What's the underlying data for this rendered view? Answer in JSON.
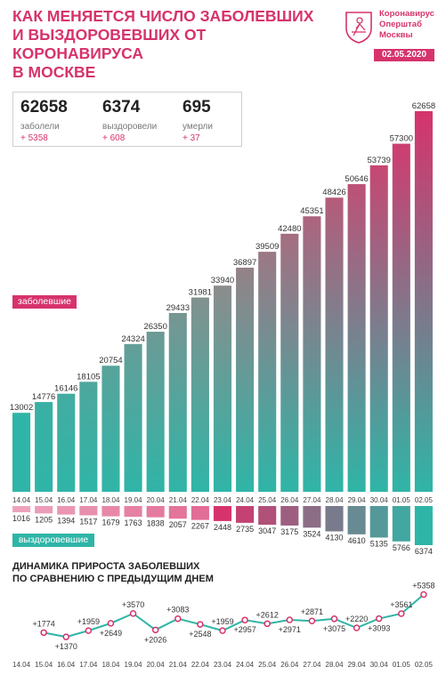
{
  "header": {
    "title_lines": [
      "Как меняется число заболевших",
      "и выздоровевших от коронавируса",
      "в Москве"
    ],
    "brand_lines": [
      "Коронавирус",
      "Оперштаб",
      "Москвы"
    ],
    "date": "02.05.2020",
    "logo_icon": "moscow-coat-of-arms-icon"
  },
  "stats": {
    "sick": {
      "value": "62658",
      "label": "заболели",
      "increase": "+ 5358"
    },
    "recovered": {
      "value": "6374",
      "label": "выздоровели",
      "increase": "+ 608"
    },
    "died": {
      "value": "695",
      "label": "умерли",
      "increase": "+ 37"
    }
  },
  "legend": {
    "sick": "заболевшие",
    "recovered": "выздоровевшие"
  },
  "dynamics_title_lines": [
    "Динамика прироста заболевших",
    "по сравнению с предыдущим днем"
  ],
  "colors": {
    "accent": "#d6336c",
    "teal": "#2fb5a7",
    "gray": "#8c8c8c"
  },
  "chart_data": [
    {
      "type": "bar",
      "categories": [
        "14.04",
        "15.04",
        "16.04",
        "17.04",
        "18.04",
        "19.04",
        "20.04",
        "21.04",
        "22.04",
        "23.04",
        "24.04",
        "25.04",
        "26.04",
        "27.04",
        "28.04",
        "29.04",
        "30.04",
        "01.05",
        "02.05"
      ],
      "series": [
        {
          "name": "заболевшие",
          "values": [
            13002,
            14776,
            16146,
            18105,
            20754,
            24324,
            26350,
            29433,
            31981,
            33940,
            36897,
            39509,
            42480,
            45351,
            48426,
            50646,
            53739,
            57300,
            62658
          ]
        },
        {
          "name": "выздоровевшие",
          "values": [
            1016,
            1205,
            1394,
            1517,
            1679,
            1763,
            1838,
            2057,
            2267,
            2448,
            2735,
            3047,
            3175,
            3524,
            4130,
            4610,
            5135,
            5766,
            6374
          ]
        }
      ]
    },
    {
      "type": "line",
      "title": "Динамика прироста заболевших по сравнению с предыдущим днем",
      "x": [
        "14.04",
        "15.04",
        "16.04",
        "17.04",
        "18.04",
        "19.04",
        "20.04",
        "21.04",
        "22.04",
        "23.04",
        "24.04",
        "25.04",
        "26.04",
        "27.04",
        "28.04",
        "29.04",
        "30.04",
        "01.05",
        "02.05"
      ],
      "values": [
        null,
        1774,
        1370,
        1959,
        2649,
        3570,
        2026,
        3083,
        2548,
        1959,
        2957,
        2612,
        2971,
        2871,
        3075,
        2220,
        3093,
        3561,
        5358
      ],
      "labels": [
        "",
        "+1774",
        "+1370",
        "+1959",
        "+2649",
        "+3570",
        "+2026",
        "+3083",
        "+2548",
        "+1959",
        "+2957",
        "+2612",
        "+2971",
        "+2871",
        "+3075",
        "+2220",
        "+3093",
        "+3561",
        "+5358"
      ]
    }
  ]
}
